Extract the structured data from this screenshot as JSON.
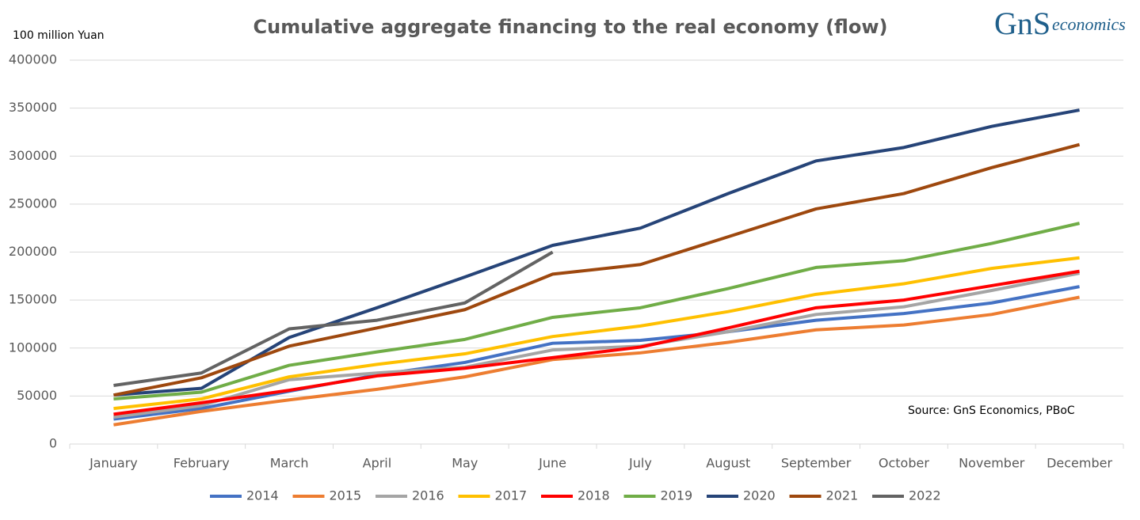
{
  "chart_data": {
    "type": "line",
    "title": "Cumulative aggregate financing to the real economy (flow)",
    "y_axis_label": "100 million Yuan",
    "annotation": "Source: GnS Economics, PBoC",
    "logo": {
      "mark": "GnS",
      "text": "economics"
    },
    "categories": [
      "January",
      "February",
      "March",
      "April",
      "May",
      "June",
      "July",
      "August",
      "September",
      "October",
      "November",
      "December"
    ],
    "ylim": [
      0,
      400000
    ],
    "yticks": [
      0,
      50000,
      100000,
      150000,
      200000,
      250000,
      300000,
      350000,
      400000
    ],
    "grid": true,
    "legend": "bottom",
    "series": [
      {
        "name": "2014",
        "color": "#4472c4",
        "values": [
          26000,
          37000,
          55000,
          72000,
          85000,
          105000,
          108000,
          117000,
          129000,
          136000,
          147000,
          164000
        ]
      },
      {
        "name": "2015",
        "color": "#ed7d31",
        "values": [
          20000,
          34000,
          46000,
          57000,
          70000,
          88000,
          95000,
          106000,
          119000,
          124000,
          135000,
          153000
        ]
      },
      {
        "name": "2016",
        "color": "#a5a5a5",
        "values": [
          28000,
          40000,
          67000,
          74000,
          80000,
          98000,
          102000,
          117000,
          135000,
          143000,
          160000,
          178000
        ]
      },
      {
        "name": "2017",
        "color": "#ffc000",
        "values": [
          37000,
          47000,
          70000,
          83000,
          94000,
          112000,
          123000,
          138000,
          156000,
          167000,
          183000,
          194000
        ]
      },
      {
        "name": "2018",
        "color": "#ff0000",
        "values": [
          31000,
          43000,
          56000,
          71000,
          79000,
          90000,
          101000,
          121000,
          142000,
          150000,
          165000,
          180000
        ]
      },
      {
        "name": "2019",
        "color": "#70ad47",
        "values": [
          47000,
          54000,
          82000,
          96000,
          109000,
          132000,
          142000,
          162000,
          184000,
          191000,
          209000,
          230000
        ]
      },
      {
        "name": "2020",
        "color": "#264478",
        "values": [
          51000,
          58000,
          111000,
          142000,
          174000,
          207000,
          225000,
          261000,
          295000,
          309000,
          331000,
          348000
        ]
      },
      {
        "name": "2021",
        "color": "#9e480e",
        "values": [
          51000,
          69000,
          102000,
          121000,
          140000,
          177000,
          187000,
          216000,
          245000,
          261000,
          288000,
          312000
        ]
      },
      {
        "name": "2022",
        "color": "#636363",
        "values": [
          61000,
          74000,
          120000,
          129000,
          147000,
          200000,
          null,
          null,
          null,
          null,
          null,
          null
        ]
      }
    ]
  }
}
